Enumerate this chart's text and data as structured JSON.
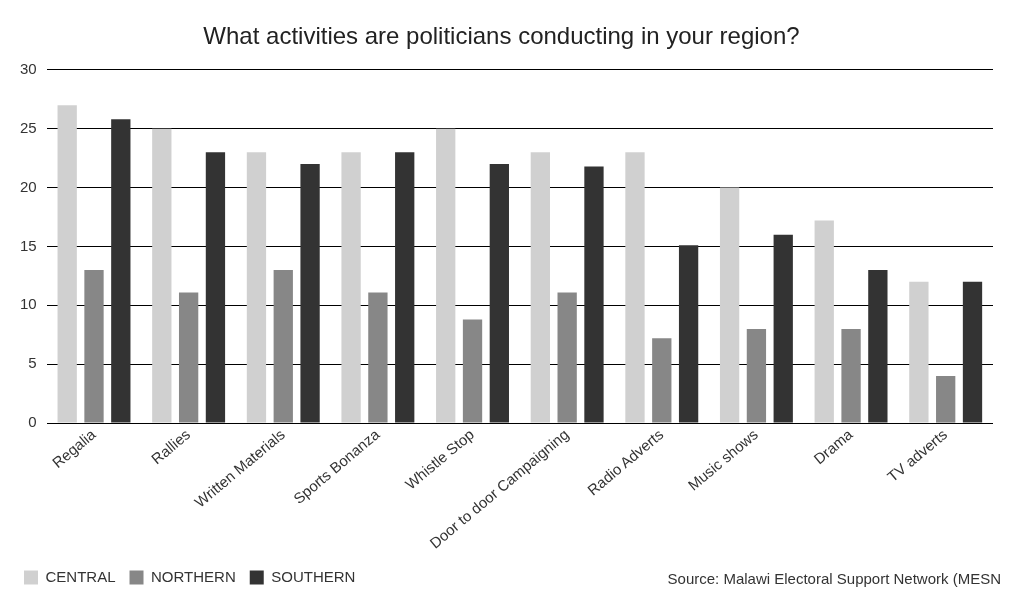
{
  "chart_data": {
    "type": "bar",
    "title": "What activities are politicians conducting in your region?",
    "categories": [
      "Regalia",
      "Rallies",
      "Written Materials",
      "Sports Bonanza",
      "Whistle Stop",
      "Door to door Campaigning",
      "Radio Adverts",
      "Music shows",
      "Drama",
      "TV adverts"
    ],
    "series": [
      {
        "name": "CENTRAL",
        "color": "#d0d0d0",
        "values": [
          27,
          25,
          23,
          23,
          25,
          23,
          23,
          20,
          17.2,
          12
        ]
      },
      {
        "name": "NORTHERN",
        "color": "#878787",
        "values": [
          13,
          11.1,
          13,
          11.1,
          8.8,
          11.1,
          7.2,
          8,
          8,
          4
        ]
      },
      {
        "name": "SOUTHERN",
        "color": "#333333",
        "values": [
          25.8,
          23,
          22,
          23,
          22,
          21.8,
          15.1,
          16,
          13,
          12
        ]
      }
    ],
    "ylim": [
      0,
      30
    ],
    "yticks": [
      0,
      5,
      10,
      15,
      20,
      25,
      30
    ],
    "grid": "y",
    "legend": "bottom left",
    "annotations": [
      "Source: Malawi Electoral Support Network (MESN"
    ]
  }
}
